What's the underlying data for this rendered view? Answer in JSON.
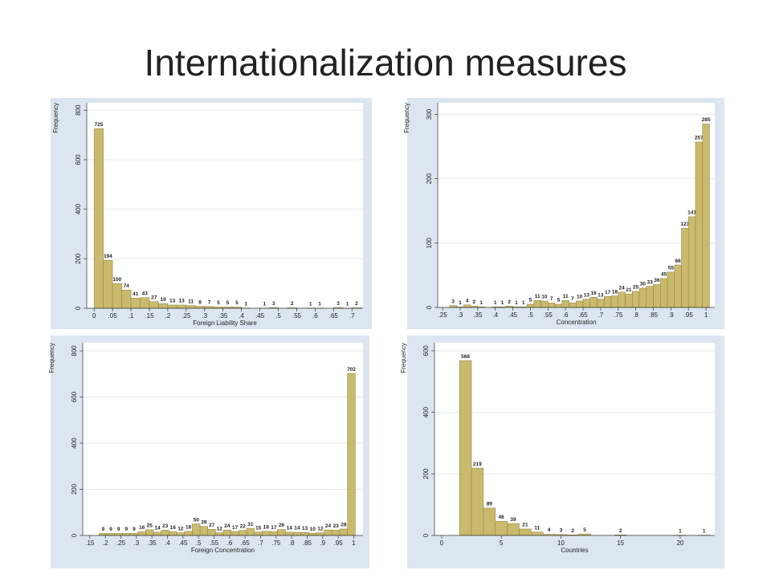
{
  "title": "Internationalization measures",
  "chart_data": [
    {
      "type": "histogram",
      "xlabel": "Foreign Liability Share",
      "ylabel": "Frequency",
      "color": "#c9ba6e",
      "bins": [
        0,
        0.025,
        0.05,
        0.075,
        0.1,
        0.125,
        0.15,
        0.175,
        0.2,
        0.225,
        0.25,
        0.275,
        0.3,
        0.325,
        0.35,
        0.375,
        0.4,
        0.425,
        0.45,
        0.475,
        0.5,
        0.525,
        0.55,
        0.575,
        0.6,
        0.625,
        0.65,
        0.675,
        0.7,
        0.725
      ],
      "values": [
        725,
        194,
        100,
        74,
        41,
        43,
        27,
        19,
        13,
        13,
        11,
        8,
        7,
        5,
        5,
        5,
        1,
        0,
        1,
        3,
        0,
        2,
        0,
        1,
        1,
        0,
        3,
        1,
        2
      ],
      "xlim": [
        -0.02,
        0.73
      ],
      "ylim": [
        0,
        830
      ],
      "xticks": [
        0,
        {
          "value": 0.05,
          "label": ".05"
        },
        {
          "value": 0.1,
          "label": ".1"
        },
        {
          "value": 0.15,
          "label": ".15"
        },
        {
          "value": 0.2,
          "label": ".2"
        },
        {
          "value": 0.25,
          "label": ".25"
        },
        {
          "value": 0.3,
          "label": ".3"
        },
        {
          "value": 0.35,
          "label": ".35"
        },
        {
          "value": 0.4,
          "label": ".4"
        },
        {
          "value": 0.45,
          "label": ".45"
        },
        {
          "value": 0.5,
          "label": ".5"
        },
        {
          "value": 0.55,
          "label": ".55"
        },
        {
          "value": 0.6,
          "label": ".6"
        },
        {
          "value": 0.65,
          "label": ".65"
        },
        {
          "value": 0.7,
          "label": ".7"
        }
      ],
      "yticks": [
        0,
        200,
        400,
        600,
        800
      ]
    },
    {
      "type": "histogram",
      "xlabel": "Concentration",
      "ylabel": "Frequency",
      "color": "#c9ba6e",
      "bins": [
        0.27,
        0.29,
        0.31,
        0.33,
        0.35,
        0.37,
        0.39,
        0.41,
        0.43,
        0.45,
        0.47,
        0.49,
        0.51,
        0.53,
        0.55,
        0.57,
        0.59,
        0.61,
        0.63,
        0.65,
        0.67,
        0.69,
        0.71,
        0.73,
        0.75,
        0.77,
        0.79,
        0.81,
        0.83,
        0.85,
        0.87,
        0.89,
        0.91,
        0.93,
        0.95,
        0.97,
        0.99,
        1.01
      ],
      "values": [
        3,
        1,
        4,
        2,
        1,
        0,
        1,
        1,
        2,
        1,
        1,
        5,
        11,
        10,
        7,
        5,
        11,
        7,
        10,
        13,
        16,
        13,
        17,
        18,
        24,
        21,
        25,
        30,
        33,
        36,
        45,
        55,
        66,
        123,
        141,
        257,
        285
      ],
      "xlim": [
        0.236,
        1.025
      ],
      "ylim": [
        0,
        318
      ],
      "xticks": [
        {
          "value": 0.25,
          "label": ".25"
        },
        {
          "value": 0.3,
          "label": ".3"
        },
        {
          "value": 0.35,
          "label": ".35"
        },
        {
          "value": 0.4,
          "label": ".4"
        },
        {
          "value": 0.45,
          "label": ".45"
        },
        {
          "value": 0.5,
          "label": ".5"
        },
        {
          "value": 0.55,
          "label": ".55"
        },
        {
          "value": 0.6,
          "label": ".6"
        },
        {
          "value": 0.65,
          "label": ".65"
        },
        {
          "value": 0.7,
          "label": ".7"
        },
        {
          "value": 0.75,
          "label": ".75"
        },
        {
          "value": 0.8,
          "label": ".8"
        },
        {
          "value": 0.85,
          "label": ".85"
        },
        {
          "value": 0.9,
          "label": ".9"
        },
        {
          "value": 0.95,
          "label": ".95"
        },
        1
      ],
      "yticks": [
        0,
        100,
        200,
        300
      ]
    },
    {
      "type": "histogram",
      "xlabel": "Foreign Concentration",
      "ylabel": "Frequency",
      "color": "#c9ba6e",
      "bins": [
        0.18,
        0.205,
        0.23,
        0.255,
        0.28,
        0.305,
        0.33,
        0.355,
        0.38,
        0.405,
        0.43,
        0.455,
        0.48,
        0.505,
        0.53,
        0.555,
        0.58,
        0.605,
        0.63,
        0.655,
        0.68,
        0.705,
        0.73,
        0.755,
        0.78,
        0.805,
        0.83,
        0.855,
        0.88,
        0.905,
        0.93,
        0.955,
        0.98,
        1.005
      ],
      "values": [
        9,
        9,
        9,
        9,
        9,
        16,
        25,
        14,
        23,
        16,
        12,
        18,
        50,
        39,
        27,
        12,
        24,
        17,
        22,
        31,
        15,
        18,
        17,
        26,
        14,
        14,
        13,
        10,
        12,
        24,
        23,
        28,
        702
      ],
      "xlim": [
        0.127,
        1.03
      ],
      "ylim": [
        0,
        835
      ],
      "xticks": [
        {
          "value": 0.15,
          "label": ".15"
        },
        {
          "value": 0.2,
          "label": ".2"
        },
        {
          "value": 0.25,
          "label": ".25"
        },
        {
          "value": 0.3,
          "label": ".3"
        },
        {
          "value": 0.35,
          "label": ".35"
        },
        {
          "value": 0.4,
          "label": ".4"
        },
        {
          "value": 0.45,
          "label": ".45"
        },
        {
          "value": 0.5,
          "label": ".5"
        },
        {
          "value": 0.55,
          "label": ".55"
        },
        {
          "value": 0.6,
          "label": ".6"
        },
        {
          "value": 0.65,
          "label": ".65"
        },
        {
          "value": 0.7,
          "label": ".7"
        },
        {
          "value": 0.75,
          "label": ".75"
        },
        {
          "value": 0.8,
          "label": ".8"
        },
        {
          "value": 0.85,
          "label": ".85"
        },
        {
          "value": 0.9,
          "label": ".9"
        },
        {
          "value": 0.95,
          "label": ".95"
        },
        1
      ],
      "yticks": [
        0,
        200,
        400,
        600,
        800
      ]
    },
    {
      "type": "histogram",
      "xlabel": "Countries",
      "ylabel": "Frequency",
      "color": "#c9ba6e",
      "bins": [
        1.5,
        2.5,
        3.5,
        4.5,
        5.5,
        6.5,
        7.5,
        8.5,
        9.5,
        10.5,
        11.5,
        12.5,
        13.5,
        14.5,
        15.5,
        16.5,
        17.5,
        18.5,
        19.5,
        20.5,
        21.5,
        22.5
      ],
      "values": [
        568,
        219,
        89,
        46,
        39,
        21,
        11,
        4,
        3,
        2,
        5,
        0,
        0,
        2,
        0,
        0,
        0,
        0,
        1,
        0,
        1
      ],
      "xlim": [
        -0.6,
        22.9
      ],
      "ylim": [
        0,
        626
      ],
      "xticks": [
        0,
        5,
        10,
        15,
        20
      ],
      "yticks": [
        0,
        200,
        400,
        600
      ]
    }
  ]
}
